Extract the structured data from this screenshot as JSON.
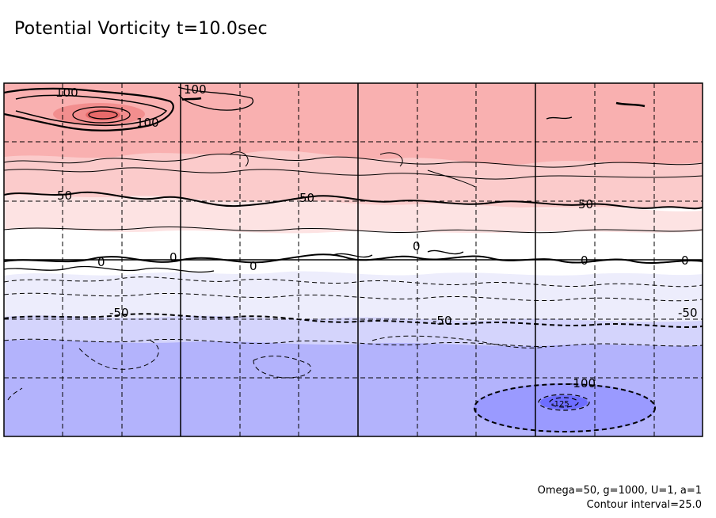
{
  "title": "Potential Vorticity t=10.0sec",
  "params_text": "Omega=50, g=1000, U=1, a=1",
  "contour_interval_text": "Contour interval=25.0",
  "chart_data": {
    "type": "contour",
    "title": "Potential Vorticity t=10.0sec",
    "variable": "potential vorticity",
    "time_sec": 10.0,
    "contour_interval": 25.0,
    "grid": true,
    "colors": {
      "pos_strong": "#f9b0b0",
      "pos_mid": "#fbcbcb",
      "pos_weak": "#fde3e3",
      "neutral": "#ffffff",
      "neg_weak": "#ededfc",
      "neg_mid": "#d4d4fc",
      "neg_strong": "#b3b3fc",
      "vortex_neg_inner": "#9a9aff",
      "vortex_neg_core": "#6e6eff",
      "vortex_pos_inner": "#f28e8e",
      "vortex_pos_core": "#e86a6a"
    },
    "contour_labels": [
      {
        "id": "lab-100-a",
        "text": "100"
      },
      {
        "id": "lab-100-b",
        "text": "100"
      },
      {
        "id": "lab-100-c",
        "text": "100"
      },
      {
        "id": "lab-50-a",
        "text": "50"
      },
      {
        "id": "lab-50-b",
        "text": "50"
      },
      {
        "id": "lab-50-c",
        "text": "50"
      },
      {
        "id": "lab-0-a",
        "text": "0"
      },
      {
        "id": "lab-0-b",
        "text": "0"
      },
      {
        "id": "lab-0-c",
        "text": "0"
      },
      {
        "id": "lab-0-d",
        "text": "0"
      },
      {
        "id": "lab-0-e",
        "text": "0"
      },
      {
        "id": "lab-0-f",
        "text": "0"
      },
      {
        "id": "lab-neg50-a",
        "text": "-50"
      },
      {
        "id": "lab-neg50-b",
        "text": "-50"
      },
      {
        "id": "lab-neg50-c",
        "text": "-50"
      },
      {
        "id": "lab-neg100-a",
        "text": "-100"
      },
      {
        "id": "lab-neg125-a",
        "text": "-125"
      }
    ]
  }
}
